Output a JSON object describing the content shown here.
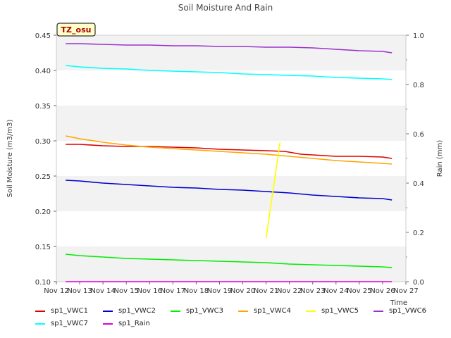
{
  "chart_data": {
    "type": "line",
    "title": "Soil Moisture And Rain",
    "site_label": "TZ_osu",
    "xlabel": "Time",
    "ylabel": "Soil Moisture (m3/m3)",
    "y2label": "Rain (mm)",
    "x_ticks": [
      "Nov 12",
      "Nov 13",
      "Nov 14",
      "Nov 15",
      "Nov 16",
      "Nov 17",
      "Nov 18",
      "Nov 19",
      "Nov 20",
      "Nov 21",
      "Nov 22",
      "Nov 23",
      "Nov 24",
      "Nov 25",
      "Nov 26",
      "Nov 27"
    ],
    "xlim": [
      0,
      15
    ],
    "ylim": [
      0.1,
      0.45
    ],
    "y_ticks": [
      "0.10",
      "0.15",
      "0.20",
      "0.25",
      "0.30",
      "0.35",
      "0.40",
      "0.45"
    ],
    "y2lim": [
      0.0,
      1.0
    ],
    "y2_ticks": [
      "0.0",
      "0.2",
      "0.4",
      "0.6",
      "0.8",
      "1.0"
    ],
    "grid": "alternating horizontal bands",
    "legend_placement": "bottom",
    "series": [
      {
        "name": "sp1_VWC1",
        "color": "#dd0000",
        "axis": "left",
        "x": [
          0.4,
          1.0,
          2.0,
          3.0,
          4.0,
          5.0,
          6.0,
          7.0,
          8.0,
          9.0,
          9.8,
          10.5,
          11.0,
          12.0,
          13.0,
          14.0,
          14.4
        ],
        "y": [
          0.295,
          0.295,
          0.293,
          0.292,
          0.292,
          0.291,
          0.29,
          0.288,
          0.287,
          0.286,
          0.285,
          0.281,
          0.28,
          0.278,
          0.278,
          0.277,
          0.275
        ]
      },
      {
        "name": "sp1_VWC2",
        "color": "#0000cc",
        "axis": "left",
        "x": [
          0.4,
          1.0,
          2.0,
          3.0,
          4.0,
          5.0,
          6.0,
          7.0,
          8.0,
          9.0,
          10.0,
          11.0,
          12.0,
          13.0,
          14.0,
          14.4
        ],
        "y": [
          0.244,
          0.243,
          0.24,
          0.238,
          0.236,
          0.234,
          0.233,
          0.231,
          0.23,
          0.228,
          0.226,
          0.223,
          0.221,
          0.219,
          0.218,
          0.216
        ]
      },
      {
        "name": "sp1_VWC3",
        "color": "#00ee00",
        "axis": "left",
        "x": [
          0.4,
          1.0,
          2.0,
          3.0,
          4.0,
          5.0,
          6.0,
          7.0,
          8.0,
          9.0,
          10.0,
          11.0,
          12.0,
          13.0,
          14.0,
          14.4
        ],
        "y": [
          0.139,
          0.137,
          0.135,
          0.133,
          0.132,
          0.131,
          0.13,
          0.129,
          0.128,
          0.127,
          0.125,
          0.124,
          0.123,
          0.122,
          0.121,
          0.12
        ]
      },
      {
        "name": "sp1_VWC4",
        "color": "#ffa500",
        "axis": "left",
        "x": [
          0.4,
          1.0,
          2.0,
          3.0,
          4.0,
          5.0,
          6.0,
          7.0,
          8.0,
          9.0,
          10.0,
          11.0,
          12.0,
          13.0,
          14.0,
          14.4
        ],
        "y": [
          0.307,
          0.303,
          0.298,
          0.294,
          0.291,
          0.289,
          0.287,
          0.285,
          0.283,
          0.281,
          0.278,
          0.275,
          0.272,
          0.27,
          0.268,
          0.267
        ]
      },
      {
        "name": "sp1_VWC5",
        "color": "#ffff00",
        "axis": "left",
        "x": [
          9.0,
          9.6
        ],
        "y": [
          0.162,
          0.298
        ]
      },
      {
        "name": "sp1_VWC6",
        "color": "#9933cc",
        "axis": "left",
        "x": [
          0.4,
          1.0,
          2.0,
          3.0,
          4.0,
          5.0,
          6.0,
          7.0,
          8.0,
          9.0,
          10.0,
          11.0,
          12.0,
          13.0,
          14.0,
          14.4
        ],
        "y": [
          0.438,
          0.438,
          0.437,
          0.436,
          0.436,
          0.435,
          0.435,
          0.434,
          0.434,
          0.433,
          0.433,
          0.432,
          0.43,
          0.428,
          0.427,
          0.425
        ]
      },
      {
        "name": "sp1_VWC7",
        "color": "#00ffff",
        "axis": "left",
        "x": [
          0.4,
          1.0,
          2.0,
          3.0,
          4.0,
          5.0,
          6.0,
          7.0,
          8.0,
          9.0,
          10.0,
          11.0,
          12.0,
          13.0,
          14.0,
          14.4
        ],
        "y": [
          0.407,
          0.405,
          0.403,
          0.402,
          0.4,
          0.399,
          0.398,
          0.397,
          0.395,
          0.394,
          0.393,
          0.392,
          0.39,
          0.389,
          0.388,
          0.387
        ]
      },
      {
        "name": "sp1_Rain",
        "color": "#dd00dd",
        "axis": "right",
        "x": [
          0.4,
          14.4
        ],
        "y": [
          0.0,
          0.0
        ]
      }
    ],
    "legend_rows": [
      [
        "sp1_VWC1",
        "sp1_VWC2",
        "sp1_VWC3",
        "sp1_VWC4",
        "sp1_VWC5",
        "sp1_VWC6"
      ],
      [
        "sp1_VWC7",
        "sp1_Rain"
      ]
    ]
  }
}
